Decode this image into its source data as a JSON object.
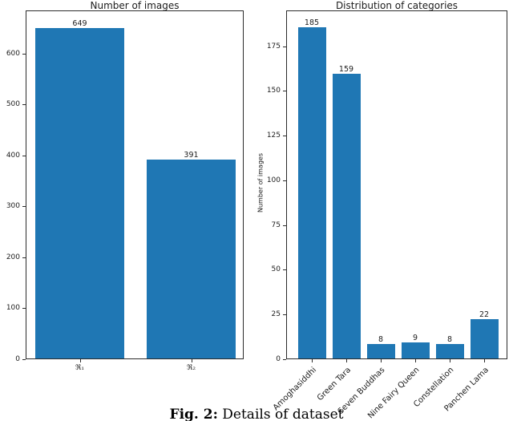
{
  "chart_data": [
    {
      "type": "bar",
      "title": "Number of images",
      "categories": [
        "ℜ₁",
        "ℜ₂"
      ],
      "values": [
        649,
        391
      ],
      "bar_labels": [
        "649",
        "391"
      ],
      "xlabel": "",
      "ylabel": "",
      "ylim": [
        0,
        685
      ],
      "yticks": [
        0,
        100,
        200,
        300,
        400,
        500,
        600
      ],
      "grid": false,
      "legend": "none",
      "bar_color": "#1f77b4"
    },
    {
      "type": "bar",
      "title": "Distribution of categories",
      "categories": [
        "Amoghasiddhi",
        "Green Tara",
        "Seven Buddhas",
        "Nine Fairy Queen",
        "Constellation",
        "Panchen Lama"
      ],
      "values": [
        185,
        159,
        8,
        9,
        8,
        22
      ],
      "bar_labels": [
        "185",
        "159",
        "8",
        "9",
        "8",
        "22"
      ],
      "xlabel": "",
      "ylabel": "Number of images",
      "ylim": [
        0,
        195
      ],
      "yticks": [
        0,
        25,
        50,
        75,
        100,
        125,
        150,
        175
      ],
      "xtick_rotation": 45,
      "grid": false,
      "legend": "none",
      "bar_color": "#1f77b4"
    }
  ],
  "caption": {
    "label": "Fig. 2:",
    "text": "Details of dataset"
  },
  "colors": {
    "bar": "#1f77b4",
    "text": "#1c1c1c",
    "spine": "#2b2b2b",
    "background": "#ffffff"
  }
}
